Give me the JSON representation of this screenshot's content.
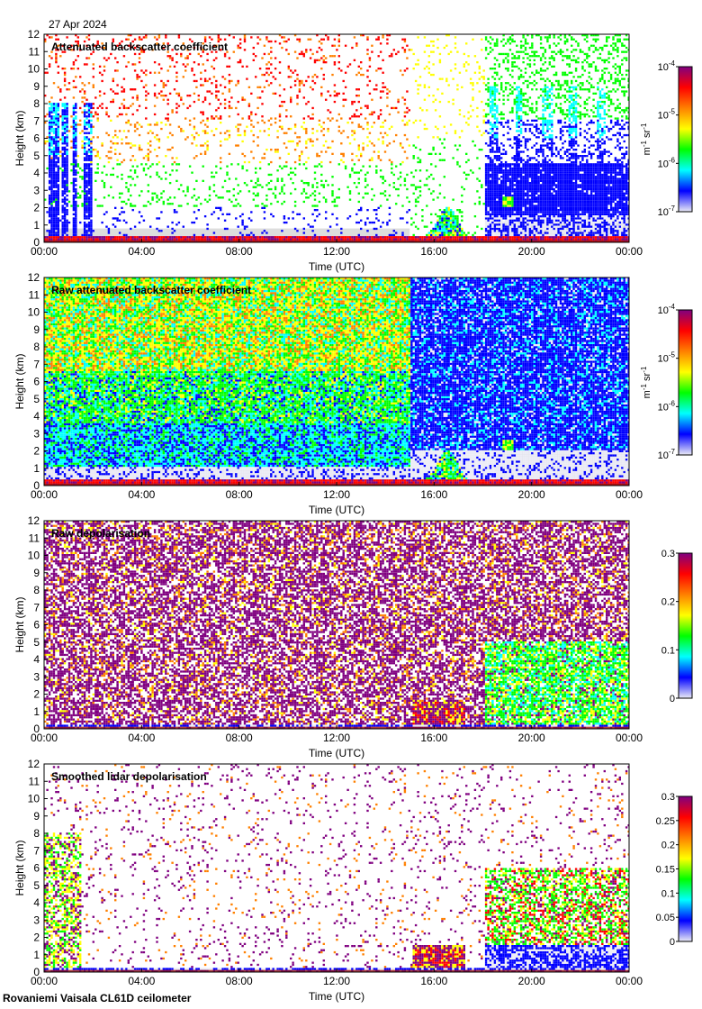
{
  "date": "27 Apr 2024",
  "site": "Rovaniemi Vaisala CL61D ceilometer",
  "colors": {
    "colormap": [
      "#ececf6",
      "#0000ff",
      "#00ffff",
      "#00ff00",
      "#ffff00",
      "#ff8000",
      "#ff0000",
      "#800080"
    ],
    "ground": "#a01010",
    "missing": "#d9d9d9"
  },
  "chart_data": [
    {
      "type": "heatmap",
      "title": "Attenuated backscatter coefficient",
      "xlabel": "Time (UTC)",
      "ylabel": "Height (km)",
      "x_ticks": [
        "00:00",
        "04:00",
        "08:00",
        "12:00",
        "16:00",
        "20:00",
        "00:00"
      ],
      "y_ticks": [
        "0",
        "1",
        "2",
        "3",
        "4",
        "5",
        "6",
        "7",
        "8",
        "9",
        "10",
        "11",
        "12"
      ],
      "xlim": [
        0,
        24
      ],
      "ylim": [
        0,
        12
      ],
      "colorbar": {
        "scale": "log",
        "range": [
          1e-07,
          0.0001
        ],
        "tick_labels": [
          "10^-7",
          "10^-6",
          "10^-5",
          "10^-4"
        ],
        "unit": "m^-1 sr^-1"
      }
    },
    {
      "type": "heatmap",
      "title": "Raw attenuated backscatter coefficient",
      "xlabel": "Time (UTC)",
      "ylabel": "Height (km)",
      "x_ticks": [
        "00:00",
        "04:00",
        "08:00",
        "12:00",
        "16:00",
        "20:00",
        "00:00"
      ],
      "y_ticks": [
        "0",
        "1",
        "2",
        "3",
        "4",
        "5",
        "6",
        "7",
        "8",
        "9",
        "10",
        "11",
        "12"
      ],
      "xlim": [
        0,
        24
      ],
      "ylim": [
        0,
        12
      ],
      "colorbar": {
        "scale": "log",
        "range": [
          1e-07,
          0.0001
        ],
        "tick_labels": [
          "10^-7",
          "10^-6",
          "10^-5",
          "10^-4"
        ],
        "unit": "m^-1 sr^-1"
      }
    },
    {
      "type": "heatmap",
      "title": "Raw depolarisation",
      "xlabel": "Time (UTC)",
      "ylabel": "Height (km)",
      "x_ticks": [
        "00:00",
        "04:00",
        "08:00",
        "12:00",
        "16:00",
        "20:00",
        "00:00"
      ],
      "y_ticks": [
        "0",
        "1",
        "2",
        "3",
        "4",
        "5",
        "6",
        "7",
        "8",
        "9",
        "10",
        "11",
        "12"
      ],
      "xlim": [
        0,
        24
      ],
      "ylim": [
        0,
        12
      ],
      "colorbar": {
        "scale": "linear",
        "range": [
          0,
          0.3
        ],
        "tick_labels": [
          "0",
          "0.1",
          "0.2",
          "0.3"
        ],
        "unit": ""
      }
    },
    {
      "type": "heatmap",
      "title": "Smoothed lidar depolarisation",
      "xlabel": "Time (UTC)",
      "ylabel": "Height (km)",
      "x_ticks": [
        "00:00",
        "04:00",
        "08:00",
        "12:00",
        "16:00",
        "20:00",
        "00:00"
      ],
      "y_ticks": [
        "0",
        "1",
        "2",
        "3",
        "4",
        "5",
        "6",
        "7",
        "8",
        "9",
        "10",
        "11",
        "12"
      ],
      "xlim": [
        0,
        24
      ],
      "ylim": [
        0,
        12
      ],
      "colorbar": {
        "scale": "linear",
        "range": [
          0,
          0.3
        ],
        "tick_labels": [
          "0",
          "0.05",
          "0.1",
          "0.15",
          "0.2",
          "0.25",
          "0.3"
        ],
        "unit": ""
      }
    }
  ]
}
